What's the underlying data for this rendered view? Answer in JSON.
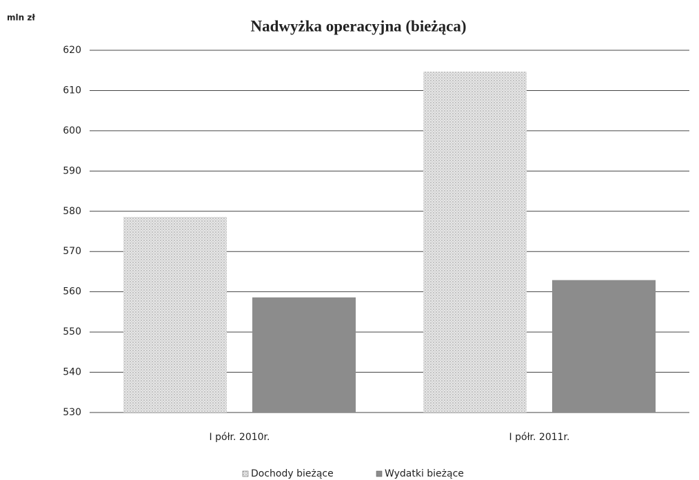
{
  "chart_data": {
    "type": "bar",
    "title": "Nadwyżka operacyjna (bieżąca)",
    "y_axis_label": "mln zł",
    "categories": [
      "I półr. 2010r.",
      "I półr. 2011r."
    ],
    "series": [
      {
        "name": "Dochody bieżące",
        "color": "#d2d2d2",
        "values": [
          578.6,
          614.7
        ]
      },
      {
        "name": "Wydatki bieżące",
        "color": "#8c8c8c",
        "values": [
          558.6,
          562.9
        ]
      }
    ],
    "ylim": [
      530,
      620
    ],
    "yticks": [
      530,
      540,
      550,
      560,
      570,
      580,
      590,
      600,
      610,
      620
    ],
    "grid": true,
    "legend": "bottom"
  }
}
